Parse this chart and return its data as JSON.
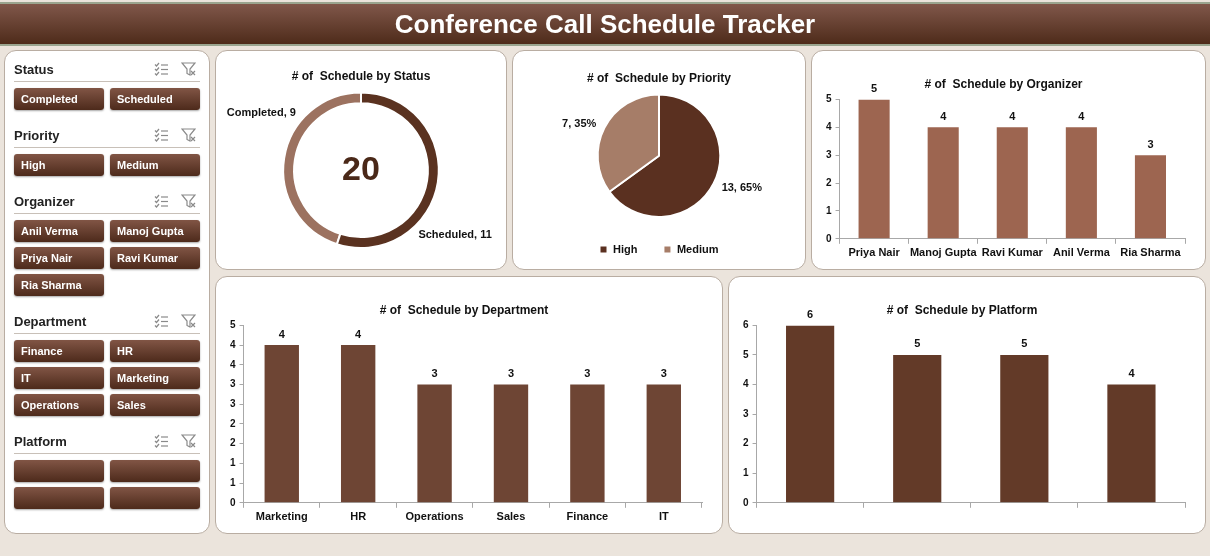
{
  "chart_data": [
    {
      "type": "other",
      "title": "Conference Call Schedule Tracker"
    },
    {
      "type": "other",
      "title": "Status",
      "categories": [
        "Completed",
        "Scheduled"
      ]
    },
    {
      "type": "other",
      "title": "Priority",
      "categories": [
        "High",
        "Medium"
      ]
    },
    {
      "type": "other",
      "title": "Organizer",
      "categories": [
        "Anil Verma",
        "Manoj Gupta",
        "Priya Nair",
        "Ravi Kumar",
        "Ria Sharma"
      ]
    },
    {
      "type": "other",
      "title": "Department",
      "categories": [
        "Finance",
        "HR",
        "IT",
        "Marketing",
        "Operations",
        "Sales"
      ]
    },
    {
      "type": "other",
      "title": "Platform",
      "categories": [
        null,
        null,
        null,
        null
      ]
    },
    {
      "type": "donut",
      "title": "# of  Schedule by Status",
      "values": [
        9,
        11
      ],
      "colors": [
        "#9c7260",
        "#5a3220"
      ],
      "value_labels": [
        "Completed, 9",
        "Scheduled, 11"
      ],
      "annotations": [
        "20"
      ]
    },
    {
      "type": "pie",
      "title": "# of  Schedule by Priority",
      "categories": [
        "High",
        "Medium"
      ],
      "values": [
        13,
        7
      ],
      "colors": [
        "#5a3020",
        "#a67d68"
      ],
      "value_labels": [
        "13, 65%",
        "7, 35%"
      ],
      "legend": "bottom"
    },
    {
      "type": "bar",
      "title": "# of  Schedule by Organizer",
      "categories": [
        "Priya Nair",
        "Manoj Gupta",
        "Ravi Kumar",
        "Anil Verma",
        "Ria Sharma"
      ],
      "values": [
        5,
        4,
        4,
        4,
        3
      ],
      "color": "#9d6550",
      "ylim": [
        0,
        5
      ],
      "yticks": [
        0,
        1,
        2,
        3,
        4,
        5
      ],
      "data_labels": true
    },
    {
      "type": "bar",
      "title": "# of  Schedule by Department",
      "categories": [
        "Marketing",
        "HR",
        "Operations",
        "Sales",
        "Finance",
        "IT"
      ],
      "values": [
        4,
        4,
        3,
        3,
        3,
        3
      ],
      "color": "#6e4534",
      "ylim": [
        0,
        4.5
      ],
      "yticks": [
        0,
        {
          "value": 0.5,
          "label": "1"
        },
        1,
        {
          "value": 1.5,
          "label": "2"
        },
        2,
        {
          "value": 2.5,
          "label": "3"
        },
        3,
        {
          "value": 3.5,
          "label": "4"
        },
        4,
        {
          "value": 4.5,
          "label": "5"
        }
      ],
      "data_labels": true
    },
    {
      "type": "bar",
      "title": "# of  Schedule by Platform",
      "categories": [
        null,
        null,
        null,
        null
      ],
      "values": [
        6,
        5,
        5,
        4
      ],
      "color": "#633a28",
      "ylim": [
        0,
        6
      ],
      "yticks": [
        0,
        1,
        2,
        3,
        4,
        5,
        6
      ],
      "data_labels": true
    }
  ]
}
